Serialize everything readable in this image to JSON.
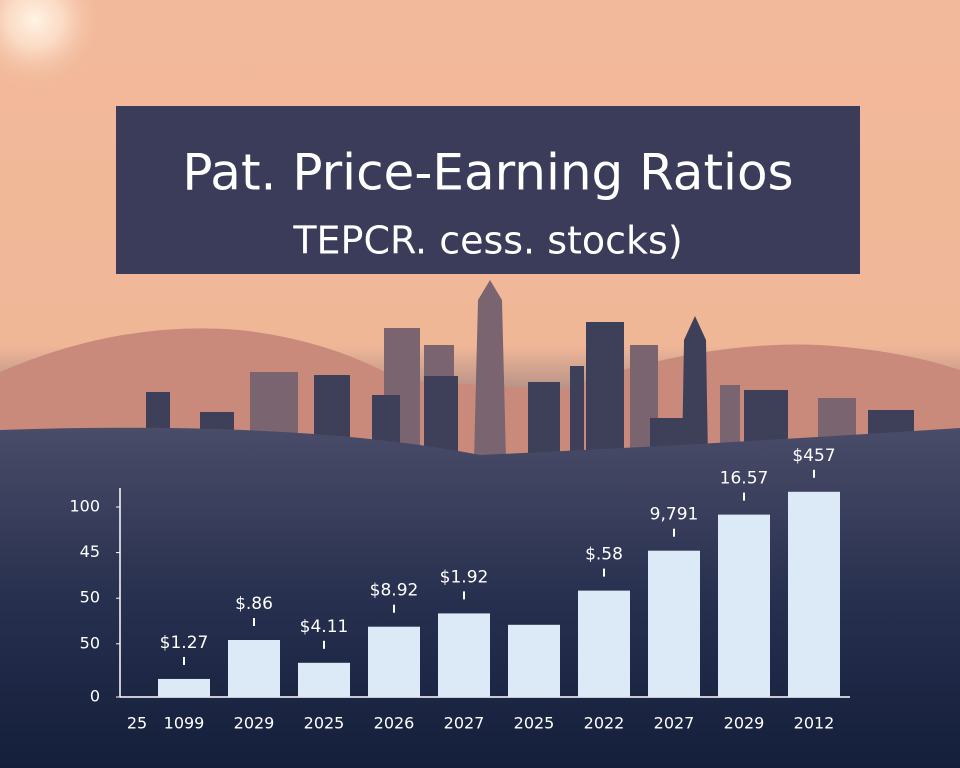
{
  "chart_data": {
    "type": "bar",
    "title": "Pat. Price-Earning Ratios",
    "subtitle": "TEPCR. cess. stocks)",
    "categories": [
      "25",
      "1099",
      "2029",
      "2025",
      "2026",
      "2027",
      "2025",
      "2022",
      "2027",
      "2029",
      "2012"
    ],
    "values": [
      null,
      9.5,
      30,
      18,
      37,
      44,
      38,
      56,
      77,
      96,
      108
    ],
    "bar_annotations": [
      null,
      "$1.27",
      "$.86",
      "$4.11",
      "$8.92",
      "$1.92",
      null,
      "$.58",
      "9,791",
      "16.57",
      "$457"
    ],
    "color": "#dce9f7",
    "ylim": [
      0,
      110
    ],
    "yticks": [
      {
        "value": 0,
        "label": "0"
      },
      {
        "value": 28,
        "label": "50"
      },
      {
        "value": 52,
        "label": "50"
      },
      {
        "value": 76,
        "label": "45"
      },
      100
    ]
  }
}
